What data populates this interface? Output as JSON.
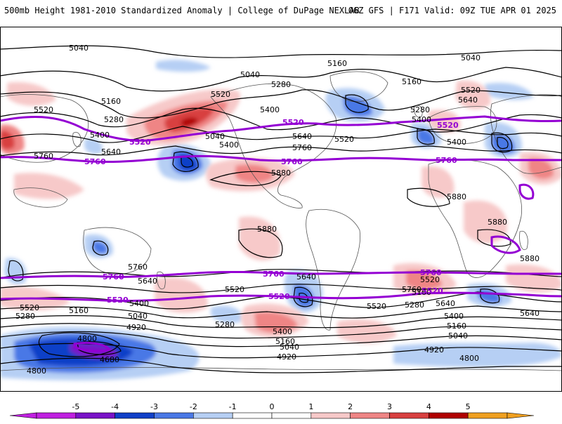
{
  "header": {
    "title_left": "500mb Height 1981-2010 Standardized Anomaly | College of DuPage NEXLAB",
    "title_right": "06Z GFS | F171 Valid: 09Z TUE APR 01 2025"
  },
  "colors": {
    "contour": "#000000",
    "highlight_contour": "#9400d3",
    "coast": "#555555",
    "anom_neg5": "#c020e0",
    "anom_neg4": "#7a12c8",
    "anom_neg3": "#1040c8",
    "anom_neg2": "#4a78e6",
    "anom_neg1": "#b6cff4",
    "anom_0": "#ffffff",
    "anom_pos1": "#f7c9c9",
    "anom_pos2": "#ef8585",
    "anom_pos3": "#d84040",
    "anom_pos4": "#b00000",
    "anom_pos5": "#f0a020"
  },
  "colorbar": {
    "ticks": [
      "-5",
      "-4",
      "-3",
      "-2",
      "-1",
      "0",
      "1",
      "2",
      "3",
      "4",
      "5"
    ],
    "segments": [
      {
        "color": "#c020e0"
      },
      {
        "color": "#7a12c8"
      },
      {
        "color": "#1040c8"
      },
      {
        "color": "#4a78e6"
      },
      {
        "color": "#b6cff4"
      },
      {
        "color": "#ffffff"
      },
      {
        "color": "#ffffff"
      },
      {
        "color": "#f7c9c9"
      },
      {
        "color": "#ef8585"
      },
      {
        "color": "#d84040"
      },
      {
        "color": "#b00000"
      },
      {
        "color": "#f0a020"
      }
    ]
  },
  "map_labels": {
    "black": [
      "5040",
      "5040",
      "5040",
      "5040",
      "5160",
      "5160",
      "5160",
      "5280",
      "5280",
      "5280",
      "5400",
      "5400",
      "5400",
      "5400",
      "5400",
      "5520",
      "5520",
      "5520",
      "5640",
      "5640",
      "5640",
      "5760",
      "5760",
      "5880",
      "5880",
      "5880",
      "5880",
      "5880",
      "5400",
      "5520",
      "5280",
      "5160",
      "5040",
      "4920",
      "5520",
      "5400",
      "5280",
      "5160",
      "5040",
      "4920",
      "4800",
      "4680",
      "4800",
      "4800",
      "5640",
      "5760",
      "5520",
      "5400",
      "5640",
      "5760",
      "5640",
      "5520",
      "5280",
      "5160",
      "5040",
      "4920",
      "5160",
      "5640",
      "5520"
    ],
    "purple": [
      "5520",
      "5760",
      "5520",
      "5760",
      "5520",
      "5760",
      "5760",
      "5520",
      "5760",
      "5520",
      "5760",
      "5520"
    ]
  }
}
